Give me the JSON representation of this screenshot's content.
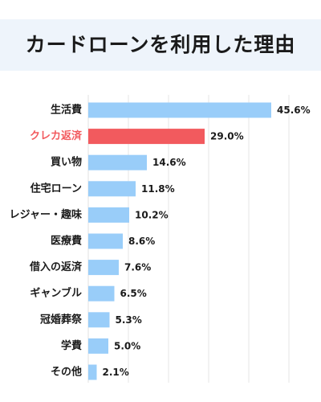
{
  "chart_data": {
    "type": "bar",
    "orientation": "horizontal",
    "title": "カードローンを利用した理由",
    "categories": [
      "生活費",
      "クレカ返済",
      "買い物",
      "住宅ローン",
      "レジャー・趣味",
      "医療費",
      "借入の返済",
      "ギャンブル",
      "冠婚葬祭",
      "学費",
      "その他"
    ],
    "values": [
      45.6,
      29.0,
      14.6,
      11.8,
      10.2,
      8.6,
      7.6,
      6.5,
      5.3,
      5.0,
      2.1
    ],
    "value_labels": [
      "45.6%",
      "29.0%",
      "14.6%",
      "11.8%",
      "10.2%",
      "8.6%",
      "7.6%",
      "6.5%",
      "5.3%",
      "5.0%",
      "2.1%"
    ],
    "highlight_index": 1,
    "xlim": [
      0,
      50
    ],
    "grid": true,
    "xlabel": "",
    "ylabel": "",
    "colors": {
      "bar": "#99cdf9",
      "highlight": "#f25a5e",
      "grid": "#e6e6e6",
      "title_band": "#eef4fb"
    }
  }
}
